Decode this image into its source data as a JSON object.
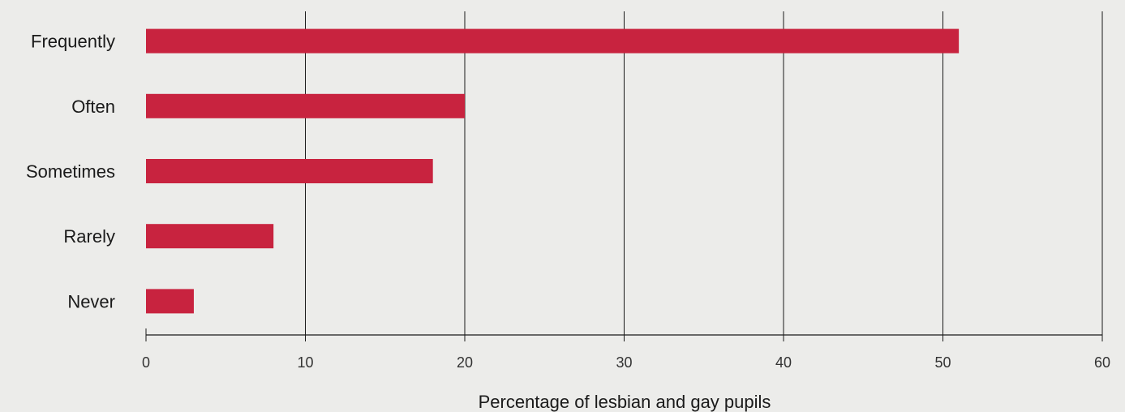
{
  "chart_data": {
    "type": "bar",
    "orientation": "horizontal",
    "categories": [
      "Frequently",
      "Often",
      "Sometimes",
      "Rarely",
      "Never"
    ],
    "values": [
      51,
      20,
      18,
      8,
      3
    ],
    "xlim": [
      0,
      60
    ],
    "xticks": [
      0,
      10,
      20,
      30,
      40,
      50,
      60
    ],
    "tick_labels": [
      "0",
      "10",
      "20",
      "30",
      "40",
      "50",
      "60"
    ],
    "xlabel": "Percentage of lesbian and gay pupils",
    "ylabel": "",
    "title": "",
    "grid": true,
    "colors": {
      "bar": "#c8233f",
      "background": "#ececea",
      "grid": "#1a1a1a"
    }
  }
}
